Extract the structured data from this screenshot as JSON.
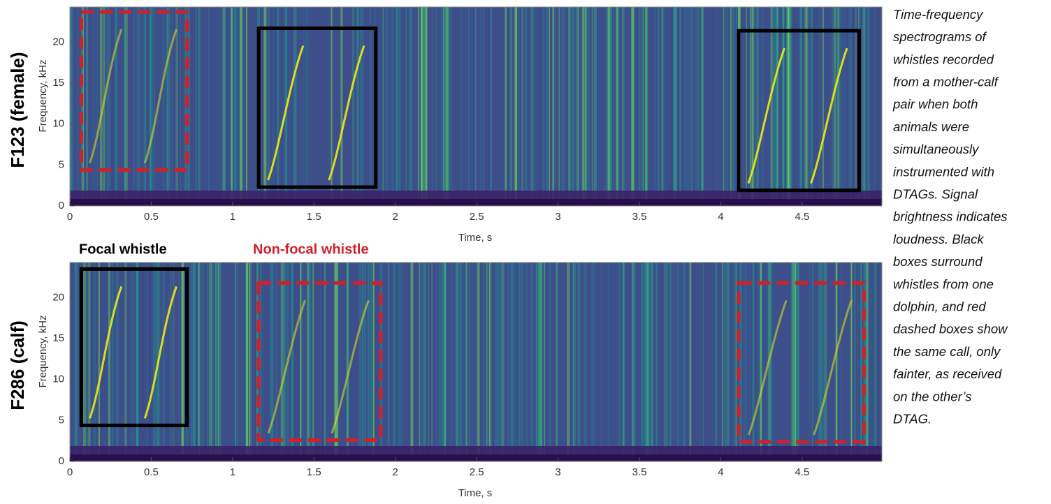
{
  "chart_data": [
    {
      "type": "spectrogram",
      "panel_label": "F123 (female)",
      "xlabel": "Time, s",
      "ylabel": "Frequency, kHz",
      "xlim": [
        0,
        4.99
      ],
      "ylim": [
        0,
        24.3
      ],
      "xticks": [
        0,
        0.5,
        1,
        1.5,
        2,
        2.5,
        3,
        3.5,
        4,
        4.5
      ],
      "yticks": [
        0,
        5,
        10,
        15,
        20
      ],
      "boxes": [
        {
          "color": "#d0202a",
          "style": "dashed",
          "x": [
            0.07,
            0.72
          ],
          "y": [
            4.4,
            23.7
          ]
        },
        {
          "color": "#000000",
          "style": "solid",
          "x": [
            1.16,
            1.88
          ],
          "y": [
            2.3,
            21.7
          ]
        },
        {
          "color": "#000000",
          "style": "solid",
          "x": [
            4.11,
            4.85
          ],
          "y": [
            1.9,
            21.4
          ]
        }
      ]
    },
    {
      "type": "spectrogram",
      "panel_label": "F286 (calf)",
      "xlabel": "Time, s",
      "ylabel": "Frequency, kHz",
      "xlim": [
        0,
        4.99
      ],
      "ylim": [
        0,
        24.3
      ],
      "xticks": [
        0,
        0.5,
        1,
        1.5,
        2,
        2.5,
        3,
        3.5,
        4,
        4.5
      ],
      "yticks": [
        0,
        5,
        10,
        15,
        20
      ],
      "boxes": [
        {
          "color": "#000000",
          "style": "solid",
          "x": [
            0.07,
            0.72
          ],
          "y": [
            4.4,
            23.5
          ]
        },
        {
          "color": "#d0202a",
          "style": "dashed",
          "x": [
            1.16,
            1.91
          ],
          "y": [
            2.6,
            21.8
          ]
        },
        {
          "color": "#d0202a",
          "style": "dashed",
          "x": [
            4.11,
            4.88
          ],
          "y": [
            2.4,
            21.8
          ]
        }
      ]
    }
  ],
  "legend": [
    {
      "label": "Focal whistle",
      "color": "#000000"
    },
    {
      "label": "Non-focal whistle",
      "color": "#d0202a"
    }
  ],
  "caption": [
    "Time-frequency",
    "spectrograms of",
    "whistles recorded",
    "from a mother-calf",
    "pair when both",
    "animals were",
    "simultaneously",
    "instrumented with",
    "DTAGs. Signal",
    "brightness indicates",
    "loudness. Black",
    "boxes surround",
    "whistles from one",
    "dolphin, and red",
    "dashed boxes show",
    "the same call, only",
    "fainter, as received",
    "on the other’s",
    "DTAG."
  ]
}
